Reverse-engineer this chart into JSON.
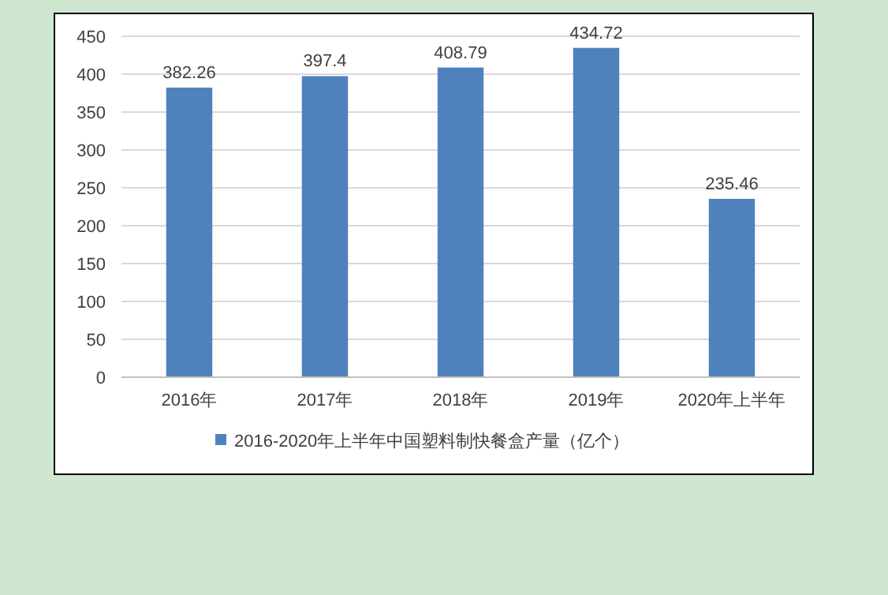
{
  "chart_data": {
    "type": "bar",
    "categories": [
      "2016年",
      "2017年",
      "2018年",
      "2019年",
      "2020年上半年"
    ],
    "series": [
      {
        "name": "2016-2020年上半年中国塑料制快餐盒产量（亿个）",
        "color": "#4f81bd",
        "values": [
          382.26,
          397.4,
          408.79,
          434.72,
          235.46
        ]
      }
    ],
    "ylim": [
      0,
      450
    ],
    "yticks": [
      0,
      50,
      100,
      150,
      200,
      250,
      300,
      350,
      400,
      450
    ],
    "grid": "y",
    "legend": "bottom",
    "data_labels": true
  }
}
